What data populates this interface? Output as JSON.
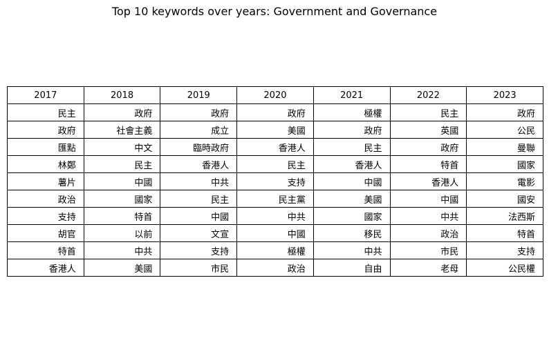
{
  "chart_data": {
    "type": "table",
    "title": "Top 10 keywords over years: Government and Governance",
    "columns": [
      "2017",
      "2018",
      "2019",
      "2020",
      "2021",
      "2022",
      "2023"
    ],
    "rows": [
      [
        "民主",
        "政府",
        "政府",
        "政府",
        "極權",
        "民主",
        "政府"
      ],
      [
        "政府",
        "社會主義",
        "成立",
        "美國",
        "政府",
        "英國",
        "公民"
      ],
      [
        "匯點",
        "中文",
        "臨時政府",
        "香港人",
        "民主",
        "政府",
        "曼聯"
      ],
      [
        "林鄭",
        "民主",
        "香港人",
        "民主",
        "香港人",
        "特首",
        "國家"
      ],
      [
        "薯片",
        "中國",
        "中共",
        "支持",
        "中國",
        "香港人",
        "電影"
      ],
      [
        "政治",
        "國家",
        "民主",
        "民主黨",
        "美國",
        "中國",
        "國安"
      ],
      [
        "支持",
        "特首",
        "中國",
        "中共",
        "國家",
        "中共",
        "法西斯"
      ],
      [
        "胡官",
        "以前",
        "文宣",
        "中國",
        "移民",
        "政治",
        "特首"
      ],
      [
        "特首",
        "中共",
        "支持",
        "極權",
        "中共",
        "市民",
        "支持"
      ],
      [
        "香港人",
        "美國",
        "市民",
        "政治",
        "自由",
        "老母",
        "公民權"
      ]
    ]
  }
}
